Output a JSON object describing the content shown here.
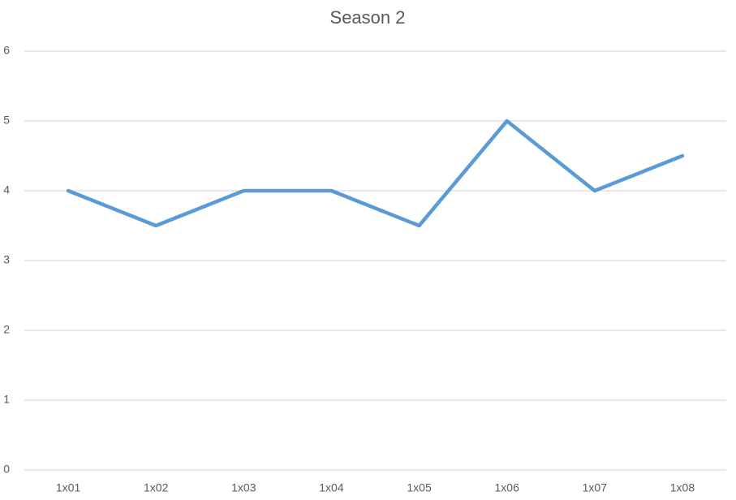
{
  "chart_data": {
    "type": "line",
    "title": "Season 2",
    "categories": [
      "1x01",
      "1x02",
      "1x03",
      "1x04",
      "1x05",
      "1x06",
      "1x07",
      "1x08"
    ],
    "series": [
      {
        "color": "#5b9bd5",
        "values": [
          4,
          3.5,
          4,
          4,
          3.5,
          5,
          4,
          4.5
        ]
      }
    ],
    "ylim": [
      0,
      6
    ],
    "yticks": [
      0,
      1,
      2,
      3,
      4,
      5,
      6
    ],
    "grid": true
  }
}
